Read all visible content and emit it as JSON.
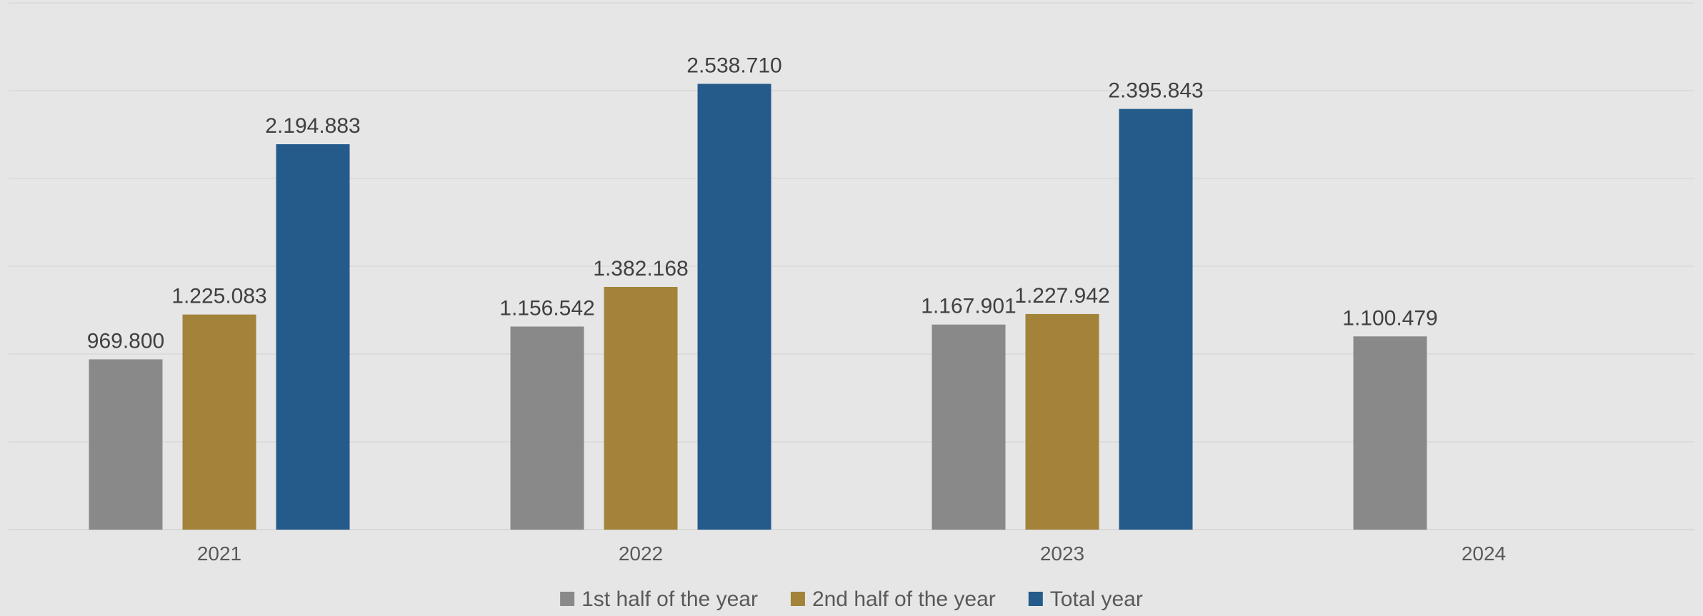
{
  "chart_data": {
    "type": "bar",
    "categories": [
      "2021",
      "2022",
      "2023",
      "2024"
    ],
    "series": [
      {
        "name": "1st half of the year",
        "color": "#898989",
        "values": [
          969800,
          1156542,
          1167901,
          1100479
        ],
        "labels": [
          "969.800",
          "1.156.542",
          "1.167.901",
          "1.100.479"
        ]
      },
      {
        "name": "2nd half of the year",
        "color": "#a38339",
        "values": [
          1225083,
          1382168,
          1227942,
          null
        ],
        "labels": [
          "1.225.083",
          "1.382.168",
          "1.227.942",
          null
        ]
      },
      {
        "name": "Total year",
        "color": "#245b8a",
        "values": [
          2194883,
          2538710,
          2395843,
          null
        ],
        "labels": [
          "2.194.883",
          "2.538.710",
          "2.395.843",
          null
        ]
      }
    ],
    "ylim": [
      0,
      3000000
    ],
    "y_gridline_step": 500000,
    "grid": true,
    "legend": "bottom-center",
    "title": "",
    "xlabel": "",
    "ylabel": ""
  }
}
